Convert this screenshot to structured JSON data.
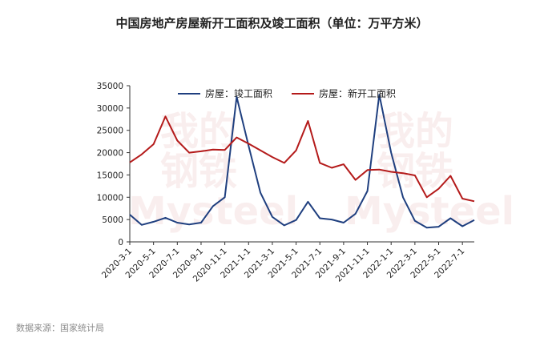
{
  "title": "中国房地产房屋新开工面积及竣工面积（单位：万平方米）",
  "source": "数据来源：国家统计局",
  "chart_data": {
    "type": "line",
    "title": "中国房地产房屋新开工面积及竣工面积（单位：万平方米）",
    "xlabel": "",
    "ylabel": "",
    "ylim": [
      0,
      35000
    ],
    "yticks": [
      0,
      5000,
      10000,
      15000,
      20000,
      25000,
      30000,
      35000
    ],
    "grid": false,
    "legend_position": "top",
    "categories": [
      "2020-3-1",
      "2020-4-1",
      "2020-5-1",
      "2020-6-1",
      "2020-7-1",
      "2020-8-1",
      "2020-9-1",
      "2020-10-1",
      "2020-11-1",
      "2020-12-1",
      "2021-1-1",
      "2021-2-1",
      "2021-3-1",
      "2021-4-1",
      "2021-5-1",
      "2021-6-1",
      "2021-7-1",
      "2021-8-1",
      "2021-9-1",
      "2021-10-1",
      "2021-11-1",
      "2021-12-1",
      "2022-1-1",
      "2022-2-1",
      "2022-3-1",
      "2022-4-1",
      "2022-5-1",
      "2022-6-1",
      "2022-7-1",
      "2022-8-1"
    ],
    "x_tick_labels": [
      "2020-3-1",
      "2020-5-1",
      "2020-7-1",
      "2020-9-1",
      "2020-11-1",
      "2021-1-1",
      "2021-3-1",
      "2021-5-1",
      "2021-7-1",
      "2021-9-1",
      "2021-11-1",
      "2022-1-1",
      "2022-3-1",
      "2022-5-1",
      "2022-7-1"
    ],
    "series": [
      {
        "name": "房屋：竣工面积",
        "color": "#1f3f7f",
        "values": [
          6100,
          3800,
          4500,
          5400,
          4300,
          3900,
          4300,
          8000,
          10000,
          32500,
          21500,
          11000,
          5600,
          3700,
          4900,
          9000,
          5300,
          5000,
          4300,
          6300,
          11400,
          33000,
          20000,
          10000,
          4700,
          3200,
          3400,
          5300,
          3500,
          4900
        ]
      },
      {
        "name": "房屋：新开工面积",
        "color": "#b41a1a",
        "values": [
          17800,
          19600,
          21900,
          28100,
          22700,
          20000,
          20300,
          20700,
          20600,
          23400,
          22000,
          20500,
          19000,
          17700,
          20500,
          27100,
          17700,
          16600,
          17400,
          13900,
          16100,
          16200,
          15700,
          15400,
          14900,
          10000,
          11900,
          14800,
          9700,
          9100
        ]
      }
    ]
  }
}
